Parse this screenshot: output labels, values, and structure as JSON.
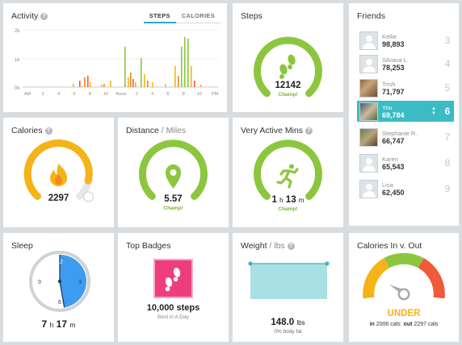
{
  "activity": {
    "title": "Activity",
    "tabs": [
      "STEPS",
      "CALORIES"
    ],
    "active_tab": "STEPS",
    "y_ticks": [
      "2k",
      "1k",
      "0k"
    ],
    "x_ticks": [
      "AM",
      "2",
      "4",
      "6",
      "8",
      "10",
      "Noon",
      "2",
      "4",
      "6",
      "8",
      "10",
      "PM"
    ]
  },
  "steps": {
    "title": "Steps",
    "value": "12142",
    "status": "Champ!",
    "progress": 1.0
  },
  "friends": {
    "title": "Friends",
    "list": [
      {
        "name": "Kellie",
        "steps": "98,893",
        "rank": "3"
      },
      {
        "name": "Silvana L.",
        "steps": "78,253",
        "rank": "4"
      },
      {
        "name": "Trish",
        "steps": "71,797",
        "rank": "5"
      },
      {
        "name": "You",
        "steps": "69,784",
        "rank": "6"
      },
      {
        "name": "Stephanie R.",
        "steps": "66,747",
        "rank": "7"
      },
      {
        "name": "Karen",
        "steps": "65,543",
        "rank": "8"
      },
      {
        "name": "Lisa",
        "steps": "62,450",
        "rank": "9"
      }
    ]
  },
  "calories": {
    "title": "Calories",
    "value": "2297",
    "progress": 0.9
  },
  "distance": {
    "title": "Distance",
    "unit": "/ Miles",
    "value": "5.57",
    "status": "Champ!",
    "progress": 1.0
  },
  "active_mins": {
    "title": "Very Active Mins",
    "hours": "1",
    "h_label": "h",
    "minutes": "13",
    "m_label": "m",
    "status": "Champ!",
    "progress": 1.0
  },
  "sleep": {
    "title": "Sleep",
    "hours": "7",
    "h_label": "h",
    "minutes": "17",
    "m_label": "m",
    "clock_labels": [
      "12",
      "3",
      "6",
      "9"
    ]
  },
  "badges": {
    "title": "Top Badges",
    "name": "10,000 steps",
    "sub": "Best in A Day"
  },
  "weight": {
    "title": "Weight",
    "unit": "/ lbs",
    "value": "148.0",
    "value_unit": "lbs",
    "sub": "0% body fat"
  },
  "calories_io": {
    "title": "Calories In v. Out",
    "status": "UNDER",
    "in_label": "in",
    "in_value": "2006 cals",
    "out_label": "out",
    "out_value": "2297 cals"
  },
  "colors": {
    "green": "#8cc63f",
    "yellow": "#f5b317",
    "teal": "#3bbbc4",
    "blue": "#3d9bf0",
    "pink": "#ec3e7d",
    "red": "#f05a3a",
    "grey": "#e0e0e0"
  }
}
